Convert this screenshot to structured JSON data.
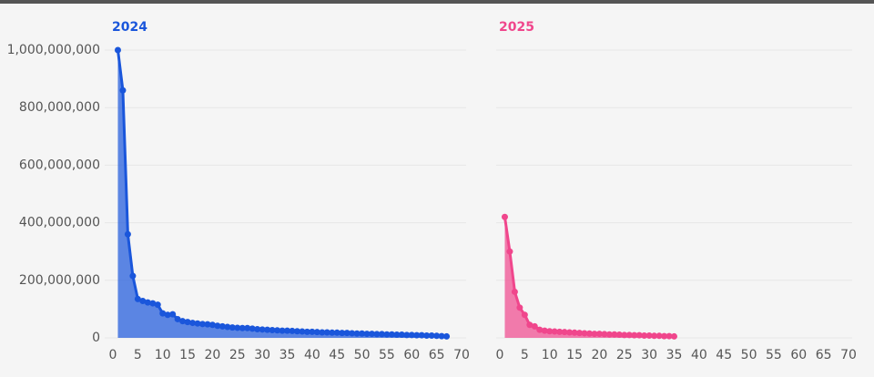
{
  "chart_data": [
    {
      "type": "area",
      "title": "2024",
      "color": "#1a56db",
      "x": [
        1,
        2,
        3,
        4,
        5,
        6,
        7,
        8,
        9,
        10,
        11,
        12,
        13,
        14,
        15,
        16,
        17,
        18,
        19,
        20,
        21,
        22,
        23,
        24,
        25,
        26,
        27,
        28,
        29,
        30,
        31,
        32,
        33,
        34,
        35,
        36,
        37,
        38,
        39,
        40,
        41,
        42,
        43,
        44,
        45,
        46,
        47,
        48,
        49,
        50,
        51,
        52,
        53,
        54,
        55,
        56,
        57,
        58,
        59,
        60,
        61,
        62,
        63,
        64,
        65,
        66,
        67
      ],
      "values": [
        1000000000,
        860000000,
        360000000,
        215000000,
        135000000,
        128000000,
        123000000,
        120000000,
        115000000,
        85000000,
        80000000,
        82000000,
        65000000,
        58000000,
        55000000,
        52000000,
        50000000,
        48000000,
        47000000,
        45000000,
        42000000,
        40000000,
        38000000,
        36000000,
        35000000,
        34000000,
        34000000,
        32000000,
        30000000,
        29000000,
        28000000,
        27000000,
        26000000,
        25000000,
        25000000,
        24000000,
        23000000,
        22000000,
        21000000,
        21000000,
        20000000,
        19000000,
        19000000,
        18000000,
        18000000,
        17000000,
        17000000,
        16000000,
        15000000,
        15000000,
        14000000,
        14000000,
        13000000,
        13000000,
        12000000,
        12000000,
        11000000,
        11000000,
        10000000,
        10000000,
        9000000,
        9000000,
        8000000,
        8000000,
        7000000,
        6000000,
        5000000
      ],
      "xlim": [
        0,
        70
      ],
      "ylim": [
        0,
        1000000000
      ],
      "xticks": [
        0,
        5,
        10,
        15,
        20,
        25,
        30,
        35,
        40,
        45,
        50,
        55,
        60,
        65,
        70
      ],
      "yticks": [
        {
          "value": 0,
          "label": "0"
        },
        {
          "value": 200000000,
          "label": "200,000,000"
        },
        {
          "value": 400000000,
          "label": "400,000,000"
        },
        {
          "value": 600000000,
          "label": "600,000,000"
        },
        {
          "value": 800000000,
          "label": "800,000,000"
        },
        {
          "value": 1000000000,
          "label": "1,000,000,000"
        }
      ],
      "grid": true
    },
    {
      "type": "area",
      "title": "2025",
      "color": "#f0468c",
      "x": [
        1,
        2,
        3,
        4,
        5,
        6,
        7,
        8,
        9,
        10,
        11,
        12,
        13,
        14,
        15,
        16,
        17,
        18,
        19,
        20,
        21,
        22,
        23,
        24,
        25,
        26,
        27,
        28,
        29,
        30,
        31,
        32,
        33,
        34,
        35
      ],
      "values": [
        420000000,
        300000000,
        160000000,
        105000000,
        80000000,
        45000000,
        40000000,
        28000000,
        25000000,
        23000000,
        22000000,
        21000000,
        20000000,
        19000000,
        18000000,
        17000000,
        16000000,
        15000000,
        14000000,
        14000000,
        13000000,
        12000000,
        12000000,
        11000000,
        10000000,
        10000000,
        9000000,
        9000000,
        8000000,
        8000000,
        7000000,
        7000000,
        6000000,
        6000000,
        5000000
      ],
      "xlim": [
        0,
        70
      ],
      "ylim": [
        0,
        1000000000
      ],
      "xticks": [
        0,
        5,
        10,
        15,
        20,
        25,
        30,
        35,
        40,
        45,
        50,
        55,
        60,
        65,
        70
      ],
      "yticks": [
        0,
        200000000,
        400000000,
        600000000,
        800000000,
        1000000000
      ],
      "grid": true
    }
  ]
}
